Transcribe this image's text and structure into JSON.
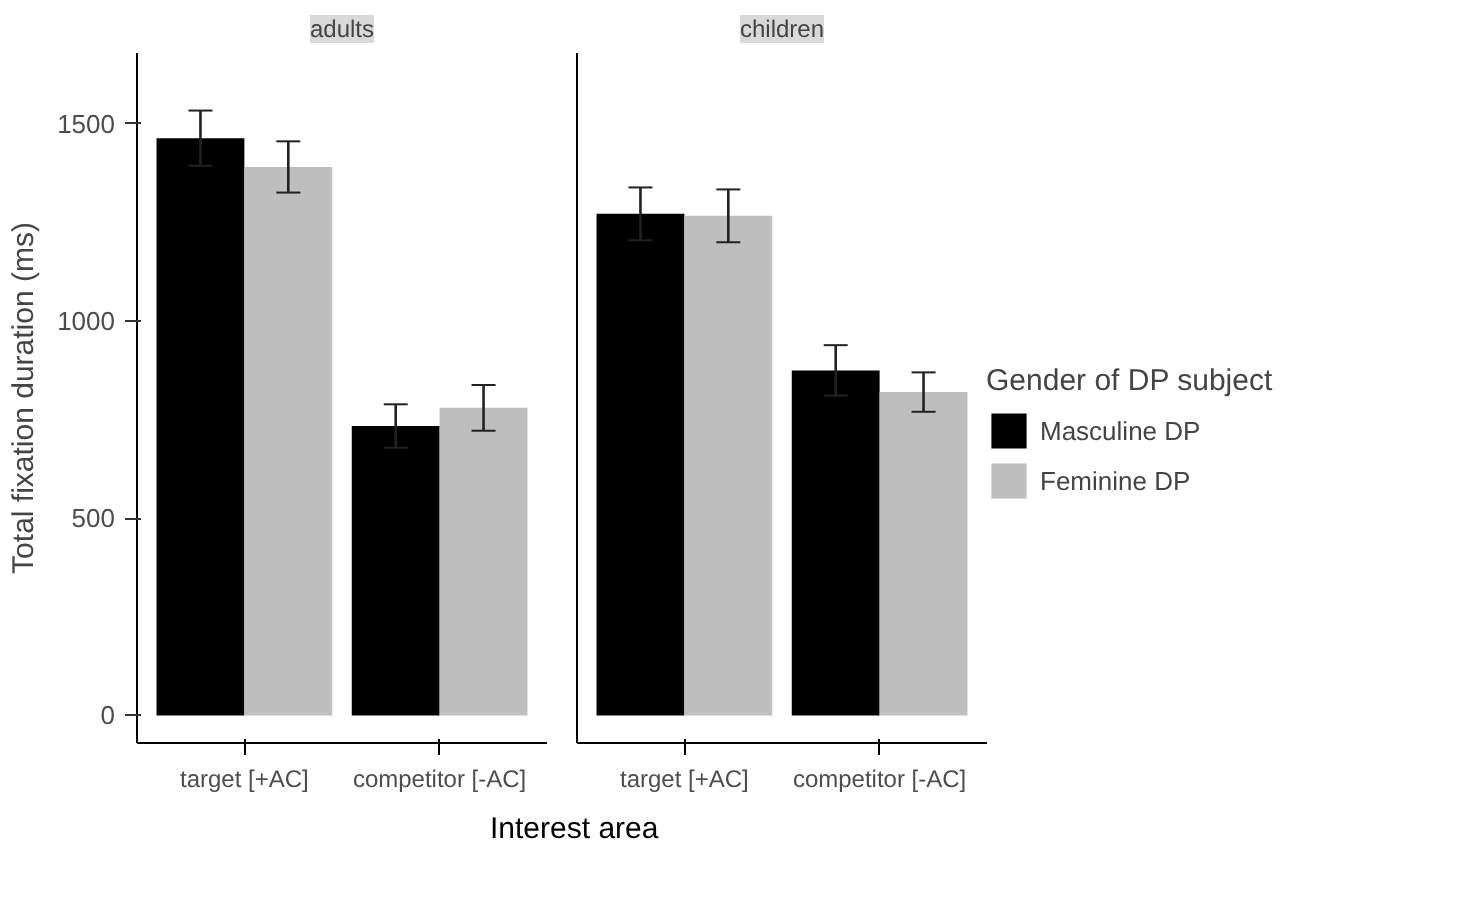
{
  "chart_data": [
    {
      "type": "bar",
      "title": "adults",
      "ylabel": "Total fixation duration (ms)",
      "xlabel": "Interest area",
      "categories": [
        "target [+AC]",
        "competitor [-AC]"
      ],
      "ylim": [
        -70,
        1680
      ],
      "yticks": [
        0,
        500,
        1000,
        1500
      ],
      "grid": false,
      "tick_labels": true,
      "series": [
        {
          "color": "#000000",
          "values": [
            1464,
            734
          ],
          "errors": [
            70,
            55
          ]
        },
        {
          "color": "#bebebe",
          "values": [
            1391,
            780
          ],
          "errors": [
            65,
            58
          ]
        }
      ]
    },
    {
      "type": "bar",
      "title": "children",
      "legend_title": "Gender of DP subject",
      "legend": "right",
      "categories": [
        "target [+AC]",
        "competitor [-AC]"
      ],
      "ylim": [
        -70,
        1680
      ],
      "yticks": [
        0,
        500,
        1000,
        1500
      ],
      "grid": false,
      "tick_labels": "x",
      "series": [
        {
          "name": "Masculine DP",
          "color": "#000000",
          "values": [
            1272,
            875
          ],
          "errors": [
            67,
            64
          ]
        },
        {
          "name": "Feminine DP",
          "color": "#bebebe",
          "values": [
            1267,
            820
          ],
          "errors": [
            67,
            50
          ]
        }
      ]
    }
  ]
}
